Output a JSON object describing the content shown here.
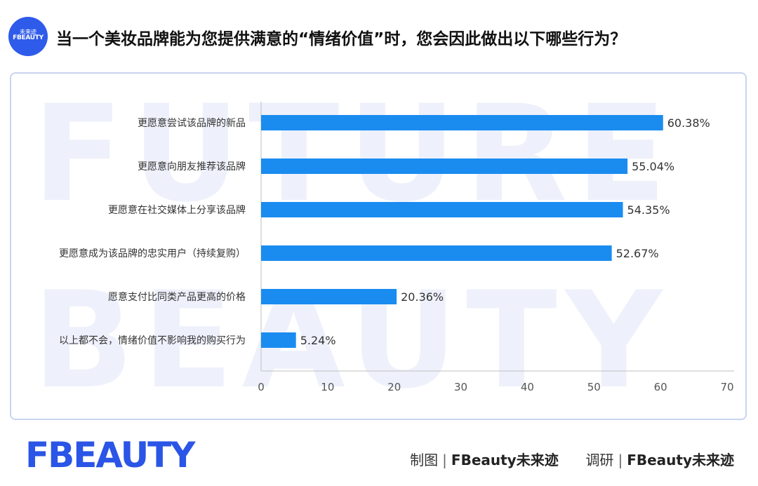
{
  "header": {
    "logo_line1": "未来迹",
    "logo_line2": "FBEAUTY",
    "question": "当一个美妆品牌能为您提供满意的“情绪价值”时，您会因此做出以下哪些行为？"
  },
  "watermark": {
    "line1": "FUTURE",
    "line2": "BEAUTY"
  },
  "chart_data": {
    "type": "bar",
    "orientation": "horizontal",
    "categories": [
      "更愿意尝试该品牌的新品",
      "更愿意向朋友推荐该品牌",
      "更愿意在社交媒体上分享该品牌",
      "更愿意成为该品牌的忠实用户（持续复购）",
      "愿意支付比同类产品更高的价格",
      "以上都不会，情绪价值不影响我的购买行为"
    ],
    "values": [
      60.38,
      55.04,
      54.35,
      52.67,
      20.36,
      5.24
    ],
    "value_labels": [
      "60.38%",
      "55.04%",
      "54.35%",
      "52.67%",
      "20.36%",
      "5.24%"
    ],
    "xlim": [
      0,
      70
    ],
    "xticks": [
      0,
      10,
      20,
      30,
      40,
      50,
      60,
      70
    ],
    "bar_color": "#1a8cf0",
    "grid": false
  },
  "footer": {
    "brand_logo": "FBEAUTY",
    "credit1_label": "制图",
    "credit1_value": "FBeauty未来迹",
    "credit2_label": "调研",
    "credit2_value": "FBeauty未来迹",
    "separator": "|"
  }
}
